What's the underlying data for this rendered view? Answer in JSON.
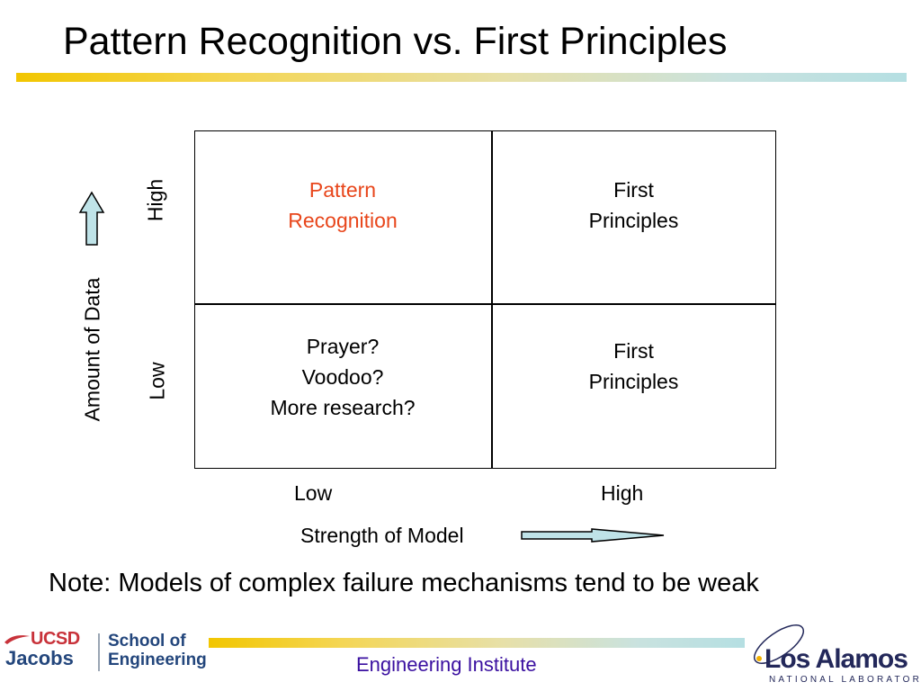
{
  "slide": {
    "title": "Pattern Recognition vs. First Principles",
    "note": "Note: Models of complex failure mechanisms tend to be weak",
    "footer_center": "Engineering Institute"
  },
  "matrix": {
    "top_left": [
      "Pattern",
      "Recognition"
    ],
    "top_right": [
      "First",
      "Principles"
    ],
    "bottom_left": [
      "Prayer?",
      "Voodoo?",
      "More research?"
    ],
    "bottom_right": [
      "First",
      "Principles"
    ],
    "y_axis": {
      "label": "Amount of Data",
      "high": "High",
      "low": "Low"
    },
    "x_axis": {
      "label": "Strength of Model",
      "low": "Low",
      "high": "High"
    }
  },
  "logos": {
    "ucsd_top": "UCSD",
    "ucsd_bottom": "Jacobs",
    "school_line1": "School of",
    "school_line2": "Engineering",
    "lanl_name": "Los Alamos",
    "lanl_sub": "NATIONAL LABORATORY"
  },
  "colors": {
    "highlight": "#e8461b",
    "footer_text": "#3a10a0",
    "arrow_fill": "#bfe3e8",
    "ucsd_red": "#c8323a",
    "navy": "#23467c"
  },
  "icons": [
    "up-arrow-icon",
    "right-arrow-icon",
    "ucsd-logo-icon",
    "lanl-logo-icon"
  ]
}
